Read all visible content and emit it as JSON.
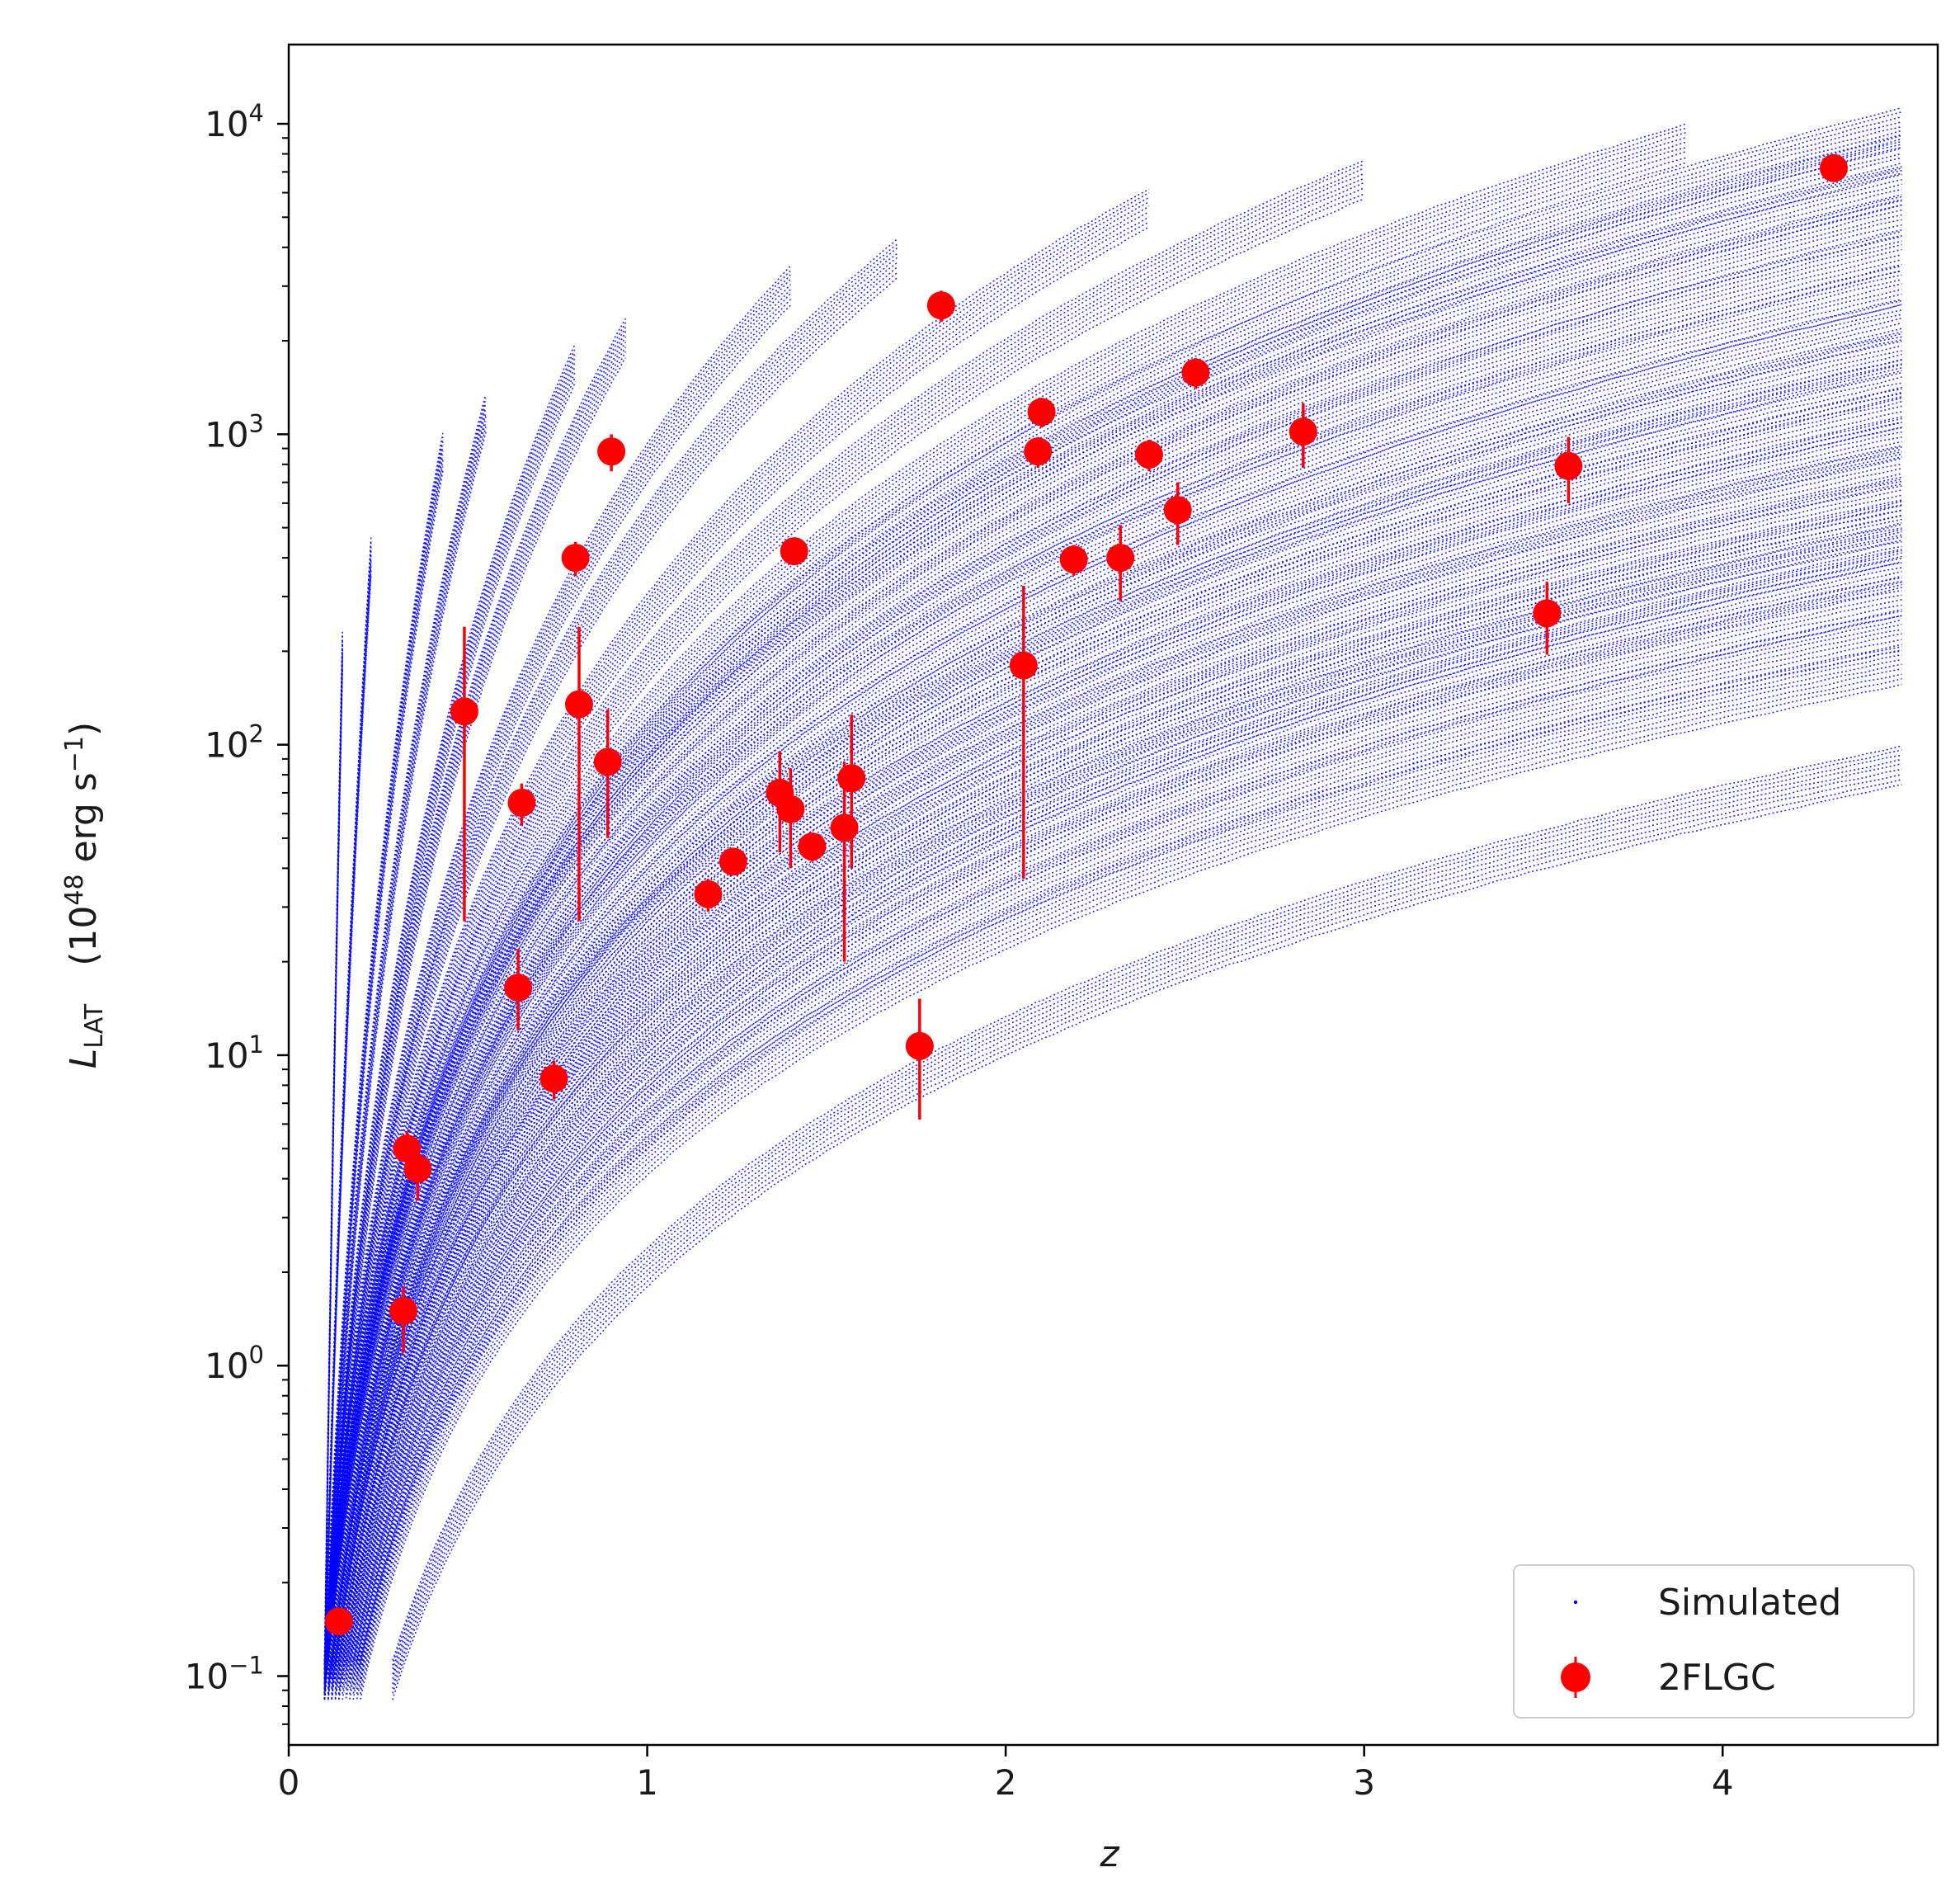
{
  "chart_data": {
    "type": "scatter",
    "title": "",
    "xlabel": "z",
    "ylabel_main": "L",
    "ylabel_sub": "LAT",
    "ylabel_units_prefix": "(10",
    "ylabel_units_exp": "48",
    "ylabel_units_mid": " erg s",
    "ylabel_units_exp2": "−1",
    "ylabel_units_suffix": ")",
    "xlim": [
      0,
      4.6
    ],
    "ylim": [
      0.06,
      18000
    ],
    "yscale": "log",
    "grid": false,
    "legend_position": "bottom-right",
    "x_ticks": [
      {
        "value": 0,
        "label": "0"
      },
      {
        "value": 1,
        "label": "1"
      },
      {
        "value": 2,
        "label": "2"
      },
      {
        "value": 3,
        "label": "3"
      },
      {
        "value": 4,
        "label": "4"
      }
    ],
    "y_ticks": [
      {
        "value": 0.1,
        "base": "10",
        "exp": "−1"
      },
      {
        "value": 1,
        "base": "10",
        "exp": "0"
      },
      {
        "value": 10,
        "base": "10",
        "exp": "1"
      },
      {
        "value": 100,
        "base": "10",
        "exp": "2"
      },
      {
        "value": 1000,
        "base": "10",
        "exp": "3"
      },
      {
        "value": 10000,
        "base": "10",
        "exp": "4"
      }
    ],
    "series": [
      {
        "name": "Simulated",
        "color": "#0000ff",
        "style": "dense curves of small dots; each curve L = K*(z/z0)^2.2 for z from z0 to zmax",
        "curves": [
          {
            "z0": 0.29,
            "zmax": 4.5,
            "L_end": 88
          },
          {
            "z0": 0.2,
            "zmax": 4.5,
            "L_end": 185
          },
          {
            "z0": 0.19,
            "zmax": 4.5,
            "L_end": 240
          },
          {
            "z0": 0.18,
            "zmax": 4.5,
            "L_end": 310
          },
          {
            "z0": 0.17,
            "zmax": 4.5,
            "L_end": 380
          },
          {
            "z0": 0.16,
            "zmax": 4.5,
            "L_end": 460
          },
          {
            "z0": 0.15,
            "zmax": 4.5,
            "L_end": 540
          },
          {
            "z0": 0.14,
            "zmax": 4.5,
            "L_end": 650
          },
          {
            "z0": 0.14,
            "zmax": 4.5,
            "L_end": 820
          },
          {
            "z0": 0.13,
            "zmax": 4.5,
            "L_end": 1000
          },
          {
            "z0": 0.13,
            "zmax": 4.5,
            "L_end": 1250
          },
          {
            "z0": 0.12,
            "zmax": 4.5,
            "L_end": 1550
          },
          {
            "z0": 0.12,
            "zmax": 4.5,
            "L_end": 1900
          },
          {
            "z0": 0.12,
            "zmax": 4.5,
            "L_end": 2400
          },
          {
            "z0": 0.11,
            "zmax": 4.5,
            "L_end": 3100
          },
          {
            "z0": 0.11,
            "zmax": 4.5,
            "L_end": 4000
          },
          {
            "z0": 0.11,
            "zmax": 4.5,
            "L_end": 5200
          },
          {
            "z0": 0.1,
            "zmax": 4.5,
            "L_end": 6500
          },
          {
            "z0": 0.1,
            "zmax": 4.5,
            "L_end": 8200
          },
          {
            "z0": 0.1,
            "zmax": 4.5,
            "L_end": 10000
          },
          {
            "z0": 0.1,
            "zmax": 3.9,
            "L_end": 8900
          },
          {
            "z0": 0.1,
            "zmax": 3.0,
            "L_end": 6800
          },
          {
            "z0": 0.1,
            "zmax": 2.4,
            "L_end": 5500
          },
          {
            "z0": 0.1,
            "zmax": 1.7,
            "L_end": 3800
          },
          {
            "z0": 0.1,
            "zmax": 1.4,
            "L_end": 3100
          },
          {
            "z0": 0.1,
            "zmax": 0.94,
            "L_end": 2100
          },
          {
            "z0": 0.1,
            "zmax": 0.8,
            "L_end": 1750
          },
          {
            "z0": 0.1,
            "zmax": 0.55,
            "L_end": 1200
          },
          {
            "z0": 0.1,
            "zmax": 0.43,
            "L_end": 900
          },
          {
            "z0": 0.1,
            "zmax": 0.23,
            "L_end": 420
          },
          {
            "z0": 0.1,
            "zmax": 0.15,
            "L_end": 210
          }
        ]
      },
      {
        "name": "2FLGC",
        "color": "#ff0000",
        "points": [
          {
            "z": 0.14,
            "y": 0.15
          },
          {
            "z": 0.32,
            "y": 1.5,
            "lo": 1.1,
            "hi": 1.8
          },
          {
            "z": 0.33,
            "y": 5.0,
            "lo": 4.3,
            "hi": 5.7
          },
          {
            "z": 0.36,
            "y": 4.3,
            "lo": 3.4,
            "hi": 5.2
          },
          {
            "z": 0.49,
            "y": 128,
            "lo": 27,
            "hi": 240
          },
          {
            "z": 0.64,
            "y": 16.5,
            "lo": 12,
            "hi": 22
          },
          {
            "z": 0.65,
            "y": 65,
            "lo": 55,
            "hi": 75
          },
          {
            "z": 0.74,
            "y": 8.4,
            "lo": 7.2,
            "hi": 9.6
          },
          {
            "z": 0.8,
            "y": 400,
            "lo": 350,
            "hi": 450
          },
          {
            "z": 0.81,
            "y": 135,
            "lo": 27,
            "hi": 240
          },
          {
            "z": 0.89,
            "y": 88,
            "lo": 50,
            "hi": 130
          },
          {
            "z": 0.9,
            "y": 880,
            "lo": 760,
            "hi": 1000
          },
          {
            "z": 1.17,
            "y": 33,
            "lo": 29,
            "hi": 37
          },
          {
            "z": 1.24,
            "y": 42,
            "lo": 38,
            "hi": 46
          },
          {
            "z": 1.37,
            "y": 70,
            "lo": 45,
            "hi": 95
          },
          {
            "z": 1.4,
            "y": 62,
            "lo": 40,
            "hi": 84
          },
          {
            "z": 1.41,
            "y": 420,
            "lo": 380,
            "hi": 460
          },
          {
            "z": 1.46,
            "y": 47,
            "lo": 42,
            "hi": 52
          },
          {
            "z": 1.55,
            "y": 54,
            "lo": 20,
            "hi": 88
          },
          {
            "z": 1.57,
            "y": 78,
            "lo": 40,
            "hi": 125
          },
          {
            "z": 1.76,
            "y": 10.7,
            "lo": 6.2,
            "hi": 15.2
          },
          {
            "z": 1.82,
            "y": 2600,
            "lo": 2300,
            "hi": 2900
          },
          {
            "z": 2.05,
            "y": 180,
            "lo": 37,
            "hi": 325
          },
          {
            "z": 2.09,
            "y": 880,
            "lo": 780,
            "hi": 980
          },
          {
            "z": 2.1,
            "y": 1180,
            "lo": 1050,
            "hi": 1310
          },
          {
            "z": 2.19,
            "y": 395,
            "lo": 350,
            "hi": 440
          },
          {
            "z": 2.32,
            "y": 400,
            "lo": 290,
            "hi": 510
          },
          {
            "z": 2.4,
            "y": 860,
            "lo": 760,
            "hi": 960
          },
          {
            "z": 2.48,
            "y": 570,
            "lo": 440,
            "hi": 700
          },
          {
            "z": 2.53,
            "y": 1580,
            "lo": 1400,
            "hi": 1760
          },
          {
            "z": 2.83,
            "y": 1020,
            "lo": 780,
            "hi": 1260
          },
          {
            "z": 3.51,
            "y": 265,
            "lo": 195,
            "hi": 335
          },
          {
            "z": 3.57,
            "y": 790,
            "lo": 600,
            "hi": 980
          },
          {
            "z": 4.31,
            "y": 7200,
            "lo": 6600,
            "hi": 7800
          }
        ]
      }
    ],
    "legend": {
      "entries": [
        {
          "label": "Simulated",
          "color": "#0000ff",
          "marker": "dot"
        },
        {
          "label": "2FLGC",
          "color": "#ff0000",
          "marker": "errorbar"
        }
      ]
    }
  }
}
